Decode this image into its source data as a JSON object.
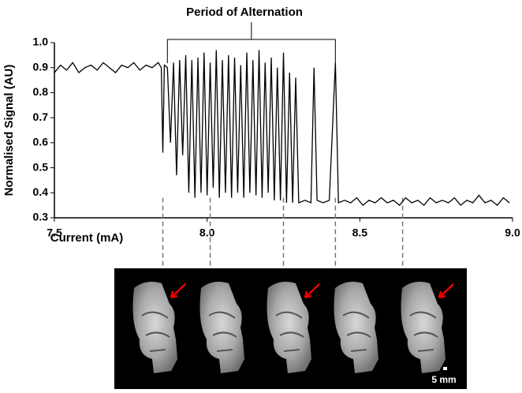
{
  "chart_data": {
    "type": "line",
    "annotation": {
      "text": "Period of Alternation",
      "x": [
        7.87,
        8.42
      ]
    },
    "x_label": "Current (mA)",
    "y_label": "Normalised Signal (AU)",
    "x": [
      7.5,
      7.52,
      7.54,
      7.56,
      7.58,
      7.6,
      7.62,
      7.64,
      7.66,
      7.68,
      7.7,
      7.72,
      7.74,
      7.76,
      7.78,
      7.8,
      7.82,
      7.84,
      7.85,
      7.855,
      7.86,
      7.87,
      7.88,
      7.89,
      7.9,
      7.91,
      7.92,
      7.93,
      7.94,
      7.95,
      7.96,
      7.97,
      7.98,
      7.99,
      8.0,
      8.01,
      8.02,
      8.03,
      8.04,
      8.05,
      8.06,
      8.07,
      8.08,
      8.09,
      8.1,
      8.11,
      8.12,
      8.13,
      8.14,
      8.15,
      8.16,
      8.17,
      8.18,
      8.19,
      8.2,
      8.21,
      8.22,
      8.23,
      8.24,
      8.25,
      8.26,
      8.27,
      8.28,
      8.29,
      8.3,
      8.32,
      8.34,
      8.35,
      8.36,
      8.38,
      8.4,
      8.42,
      8.43,
      8.45,
      8.47,
      8.49,
      8.51,
      8.53,
      8.55,
      8.57,
      8.59,
      8.61,
      8.63,
      8.65,
      8.67,
      8.69,
      8.71,
      8.73,
      8.75,
      8.77,
      8.79,
      8.81,
      8.83,
      8.85,
      8.87,
      8.89,
      8.91,
      8.93,
      8.95,
      8.97,
      8.99
    ],
    "series": [
      {
        "color": "#000000",
        "values": [
          0.88,
          0.91,
          0.89,
          0.92,
          0.88,
          0.9,
          0.91,
          0.89,
          0.92,
          0.9,
          0.88,
          0.91,
          0.9,
          0.92,
          0.89,
          0.91,
          0.9,
          0.92,
          0.9,
          0.56,
          0.91,
          0.9,
          0.6,
          0.92,
          0.47,
          0.93,
          0.55,
          0.95,
          0.4,
          0.93,
          0.38,
          0.94,
          0.4,
          0.96,
          0.39,
          0.92,
          0.42,
          0.97,
          0.38,
          0.93,
          0.4,
          0.95,
          0.38,
          0.94,
          0.4,
          0.91,
          0.38,
          0.96,
          0.4,
          0.93,
          0.39,
          0.97,
          0.38,
          0.92,
          0.4,
          0.94,
          0.37,
          0.9,
          0.37,
          0.96,
          0.36,
          0.88,
          0.36,
          0.86,
          0.36,
          0.37,
          0.36,
          0.9,
          0.37,
          0.36,
          0.37,
          0.92,
          0.36,
          0.37,
          0.36,
          0.38,
          0.35,
          0.37,
          0.36,
          0.38,
          0.36,
          0.37,
          0.35,
          0.38,
          0.36,
          0.37,
          0.35,
          0.38,
          0.36,
          0.37,
          0.36,
          0.38,
          0.35,
          0.37,
          0.36,
          0.39,
          0.36,
          0.37,
          0.35,
          0.38,
          0.36
        ]
      }
    ],
    "snapshot_x": [
      7.855,
      8.01,
      8.25,
      8.42,
      8.64
    ],
    "xlim": [
      7.5,
      9.0
    ],
    "ylim": [
      0.3,
      1.0
    ],
    "xticks": [
      7.5,
      {
        "value": 8,
        "label": "8.0"
      },
      8.5,
      {
        "value": 9,
        "label": "9.0"
      }
    ],
    "yticks": [
      0.3,
      0.4,
      0.5,
      0.6,
      0.7,
      0.8,
      0.9,
      {
        "value": 1,
        "label": "1.0"
      }
    ],
    "grid": false,
    "scale_bar_label": "5 mm"
  }
}
